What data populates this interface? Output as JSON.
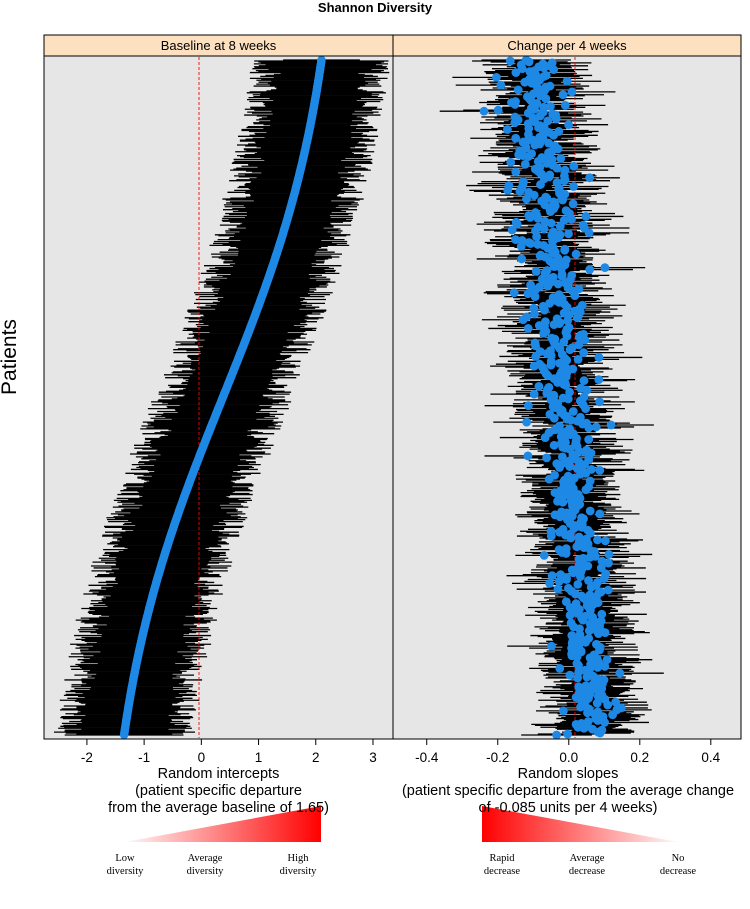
{
  "title": "Shannon Diversity",
  "ylabel": "Patients",
  "colors": {
    "strip": "#fde0bf",
    "panel": "#e6e6e6",
    "point": "#1e88e5",
    "ci": "#000000",
    "ref_line": "#ff0000",
    "gradient": "#ff0000"
  },
  "chart_data": [
    {
      "type": "scatter",
      "panel_title": "Baseline at 8 weeks",
      "xlabel": "Random intercepts",
      "xlabel_note": [
        "(patient specific departure",
        "from the average baseline of 1.65)"
      ],
      "xticks": [
        "-2",
        "-1",
        "0",
        "1",
        "2",
        "3"
      ],
      "xlim": [
        -2.75,
        3.35
      ],
      "reference_x": 0,
      "n_patients": 700,
      "estimate_range": [
        -1.35,
        2.1
      ],
      "ci_halfwidth_approx": 0.95,
      "description_of_points": "patients sorted by intercept; S-shaped ordered estimate curve from about -1.35 (bottom) to about 2.1 (top), each with a black horizontal interval"
    },
    {
      "type": "scatter",
      "panel_title": "Change per 4 weeks",
      "xlabel": "Random slopes",
      "xlabel_note": [
        "(patient specific departure from the average change",
        "of -0.085 units per 4 weeks)"
      ],
      "xticks": [
        "-0.4",
        "-0.2",
        "0.0",
        "0.2",
        "0.4"
      ],
      "xlim": [
        -0.495,
        0.485
      ],
      "reference_x": 0,
      "n_patients": 700,
      "estimate_range": [
        -0.25,
        0.25
      ],
      "ci_halfwidth_approx": 0.1,
      "description_of_points": "same patient ordering; slopes scattered around -0.1 at top drifting to about 0.07 at bottom, each with a black horizontal interval"
    }
  ],
  "legend_left": {
    "labels": [
      [
        "Low",
        "diversity"
      ],
      [
        "Average",
        "diversity"
      ],
      [
        "High",
        "diversity"
      ]
    ]
  },
  "legend_right": {
    "labels": [
      [
        "Rapid",
        "decrease"
      ],
      [
        "Average",
        "decrease"
      ],
      [
        "No",
        "decrease"
      ]
    ]
  }
}
